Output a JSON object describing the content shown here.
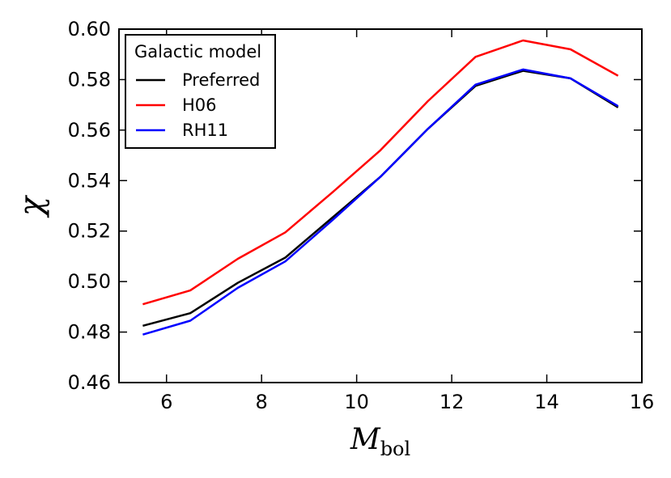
{
  "chart_data": {
    "type": "line",
    "title": "",
    "xlabel": "M",
    "xlabel_subscript": "bol",
    "ylabel": "χ",
    "xlim": [
      5,
      16
    ],
    "ylim": [
      0.46,
      0.6
    ],
    "xticks": [
      6,
      8,
      10,
      12,
      14,
      16
    ],
    "yticks": [
      "0.46",
      "0.48",
      "0.50",
      "0.52",
      "0.54",
      "0.56",
      "0.58",
      "0.60"
    ],
    "grid": false,
    "legend": {
      "title": "Galactic model",
      "placement": "top-left"
    },
    "x": [
      5.5,
      6.5,
      7.5,
      8.5,
      9.5,
      10.5,
      11.5,
      12.5,
      13.5,
      14.5,
      15.5
    ],
    "series": [
      {
        "name": "Preferred",
        "color": "#000000",
        "values": [
          0.4825,
          0.4875,
          0.4995,
          0.5095,
          0.5255,
          0.5415,
          0.5605,
          0.5775,
          0.5835,
          0.5805,
          0.569
        ]
      },
      {
        "name": "H06",
        "color": "#ff0000",
        "values": [
          0.491,
          0.4965,
          0.509,
          0.5195,
          0.5355,
          0.552,
          0.5715,
          0.589,
          0.5955,
          0.592,
          0.5815
        ]
      },
      {
        "name": "RH11",
        "color": "#0000ff",
        "values": [
          0.479,
          0.4845,
          0.4975,
          0.508,
          0.5245,
          0.5415,
          0.5605,
          0.578,
          0.584,
          0.5805,
          0.5695
        ]
      }
    ]
  }
}
